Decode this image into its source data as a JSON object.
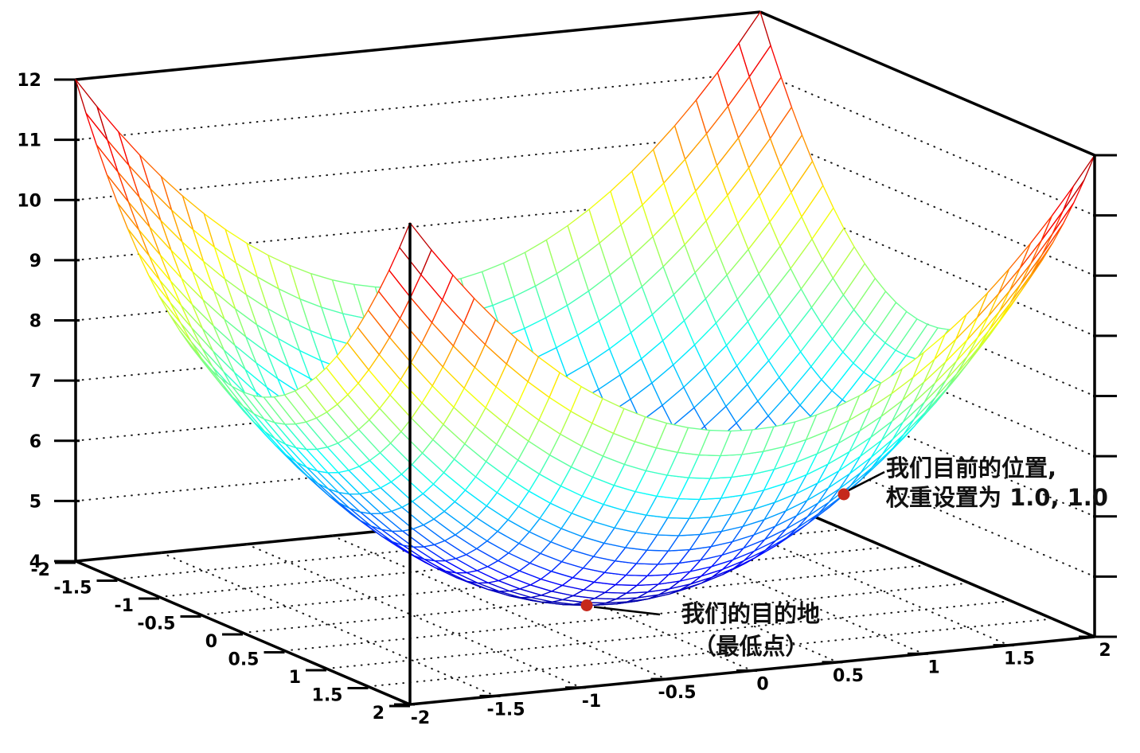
{
  "chart_data": {
    "type": "surface3d-wireframe",
    "z_function": "z = x^2 + y^2 + 4",
    "z_coeffs": {
      "a": 1,
      "b": 1,
      "c": 4
    },
    "x_range": [
      -2,
      2
    ],
    "y_range": [
      -2,
      2
    ],
    "z_range": [
      4,
      12
    ],
    "mesh_step": 0.125,
    "tick_step": 0.5,
    "x_tick_labels": [
      "-2",
      "-1.5",
      "-1",
      "-0.5",
      "0",
      "0.5",
      "1",
      "1.5",
      "2"
    ],
    "y_tick_labels": [
      "-2",
      "-1.5",
      "-1",
      "-0.5",
      "0",
      "0.5",
      "1",
      "1.5",
      "2"
    ],
    "z_tick_labels": [
      "4",
      "5",
      "6",
      "7",
      "8",
      "9",
      "10",
      "11",
      "12"
    ],
    "colormap": "jet",
    "grid": "dotted walls and floor",
    "points": [
      {
        "id": "current-position",
        "x": 1.0,
        "y": 1.0,
        "z": 6.0
      },
      {
        "id": "destination",
        "x": 0.0,
        "y": 0.0,
        "z": 4.0
      }
    ]
  },
  "annotations": {
    "current": {
      "line1": "我们目前的位置,",
      "line2": "权重设置为 1.0, 1.0"
    },
    "destination": {
      "line1": "我们的目的地",
      "line2": "（最低点）"
    }
  },
  "colors": {
    "marker": "#c5281c",
    "axis": "#000000",
    "grid_dots": "#1a1a1a",
    "background": "#ffffff"
  }
}
